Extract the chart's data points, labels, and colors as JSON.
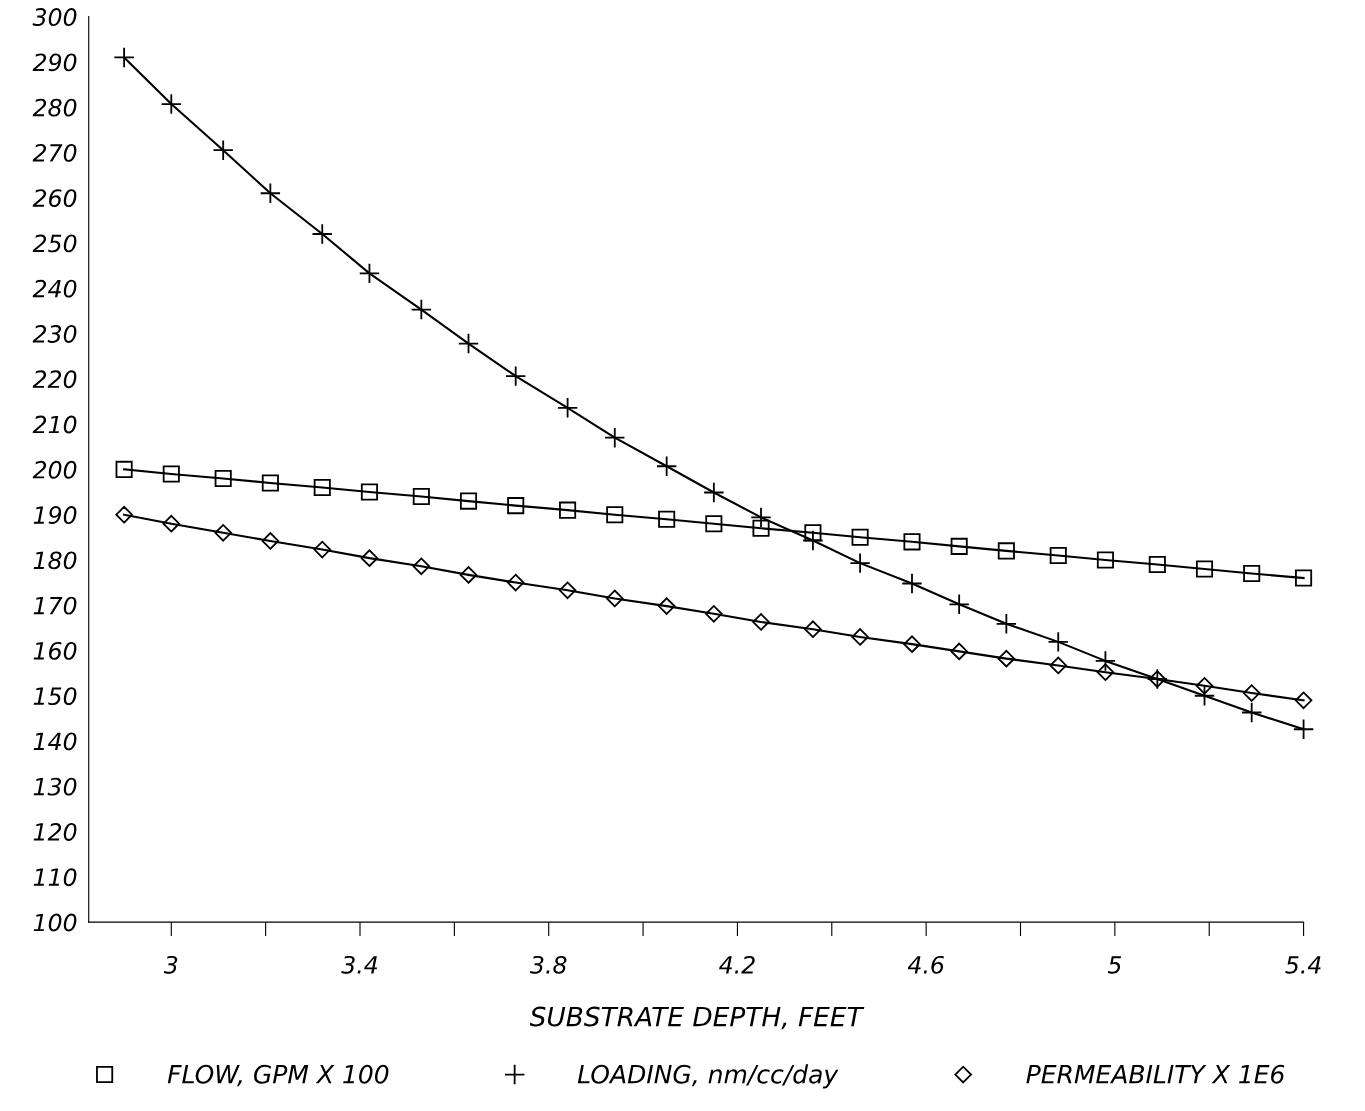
{
  "chart_data": {
    "type": "line",
    "xlabel": "SUBSTRATE DEPTH, FEET",
    "x": [
      2.9,
      3.0,
      3.11,
      3.21,
      3.32,
      3.42,
      3.53,
      3.63,
      3.73,
      3.84,
      3.94,
      4.05,
      4.15,
      4.25,
      4.36,
      4.46,
      4.57,
      4.67,
      4.77,
      4.88,
      4.98,
      5.09,
      5.19,
      5.29,
      5.4
    ],
    "series": [
      {
        "name": "FLOW, GPM X 100",
        "color": "#000000",
        "marker": "square",
        "values": [
          200,
          199,
          198,
          197,
          196,
          195,
          194,
          193,
          192,
          191,
          190,
          189,
          188,
          187,
          186,
          185,
          184,
          183,
          182,
          181,
          180,
          179,
          178,
          177,
          176
        ]
      },
      {
        "name": "LOADING, nm/cc/day",
        "color": "#000000",
        "marker": "cross",
        "values": [
          291,
          280.7,
          270.5,
          261,
          252,
          243.3,
          235.3,
          227.8,
          220.6,
          213.6,
          207,
          200.7,
          194.9,
          189.4,
          184.3,
          179.3,
          174.8,
          170.2,
          165.9,
          161.9,
          157.7,
          153.7,
          150,
          146.3,
          142.6
        ]
      },
      {
        "name": "PERMEABILITY X 1E6",
        "color": "#000000",
        "marker": "diamond",
        "values": [
          190,
          188,
          186,
          184.2,
          182.3,
          180.4,
          178.6,
          176.7,
          175,
          173.3,
          171.5,
          169.8,
          168.1,
          166.3,
          164.7,
          163,
          161.4,
          159.8,
          158.2,
          156.7,
          155.2,
          153.7,
          152.2,
          150.6,
          149
        ]
      }
    ],
    "xlim": [
      2.825,
      5.4
    ],
    "xticks": [
      3,
      {
        "value": 3.2,
        "label": null
      },
      3.4,
      {
        "value": 3.6,
        "label": null
      },
      3.8,
      {
        "value": 4.0,
        "label": null
      },
      4.2,
      {
        "value": 4.4,
        "label": null
      },
      4.6,
      {
        "value": 4.8,
        "label": null
      },
      5,
      {
        "value": 5.2,
        "label": null
      },
      5.4
    ],
    "ylim": [
      100,
      300
    ],
    "yticks": [
      100,
      110,
      120,
      130,
      140,
      150,
      160,
      170,
      180,
      190,
      200,
      210,
      220,
      230,
      240,
      250,
      260,
      270,
      280,
      290,
      300
    ],
    "grid": false,
    "legend": "bottom",
    "line_style": "solid"
  }
}
